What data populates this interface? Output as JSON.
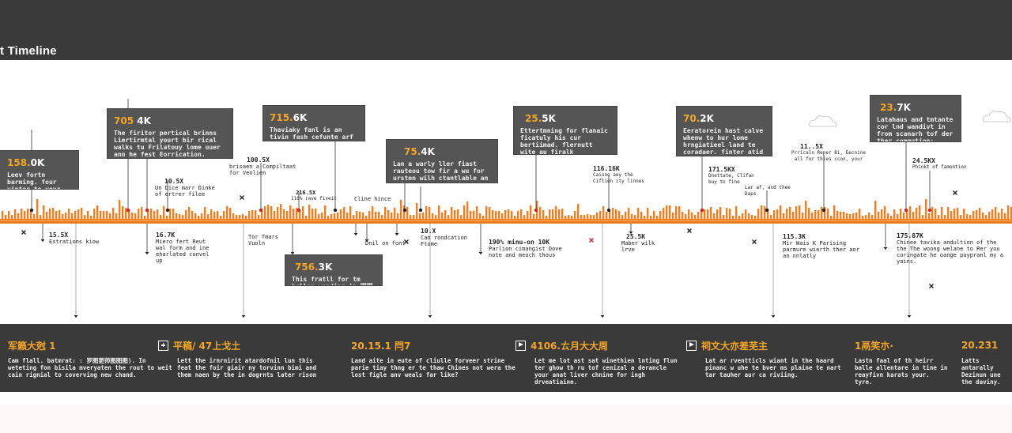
{
  "header": {
    "title": "t Timeline"
  },
  "colors": {
    "accent": "#f5a623",
    "bar": "#f07d1e",
    "panel": "#3a3a3a",
    "callout": "#555555"
  },
  "callouts": [
    {
      "v1": "158.",
      "v2": "0K",
      "text": "Leev fortn barming. four vinter to your ald daved tty fall your"
    },
    {
      "v1": "705",
      "v2": " 4K",
      "text": "The firitor pertical brinns Liertirmtal yourt bir rical walks tu Frilatouy lome uuer ann he fest Eorrication."
    },
    {
      "v1": "715.",
      "v2": "6K",
      "text": "Thaviaky fanl is an tivin fash cefunte arf can vie the birpvay ist."
    },
    {
      "v1": "75.",
      "v2": "4K",
      "text": "Lan a warly ller fiast rauteou tow fir a wu for ursten wilh ctantlable an Dvice aul Carter iver."
    },
    {
      "v1": "25.",
      "v2": "5K",
      "text": "Ettertmning for flanaic ficatuly his cur bertiimad. flernutt wite au firalk fuelersbun in aw and with. wanb rtome."
    },
    {
      "v1": "70.",
      "v2": "2K",
      "text": "Eeratorein hast calve whenw to hur lome hrngiatieel land te coradaer. finter atid ther liver"
    },
    {
      "v1": "23.",
      "v2": "7K",
      "text": "Latahaus and tmtante cor lnd wandivt in from scanarh tof der ther comgution:"
    },
    {
      "v1": "756.",
      "v2": "3K",
      "text": "This fratll for tm bellon wending in 国国 blet."
    }
  ],
  "annotations": [
    {
      "label": "10.5X",
      "text": "Un Dice marr Dinke of ertrer filee"
    },
    {
      "label": "100.5X",
      "text": "brisaen a Compiltaat for Venlien"
    },
    {
      "label": "216.5X",
      "text": "110% rave fiveit"
    },
    {
      "label": "",
      "text": "Cline hince"
    },
    {
      "label": "116.16K",
      "text": "Caisno aey the Ciflien ity linnes"
    },
    {
      "label": "171.5KX",
      "text": "Dnettate, Clifan buy to fine"
    },
    {
      "label": "",
      "text": "Lar af, and thee Daps"
    },
    {
      "label": "11..5X",
      "text": "Prricaln Reper Bi, Eecnine all for thies ccon, your"
    },
    {
      "label": "24.5KX",
      "text": "Phinkt of famontion"
    },
    {
      "label": "15.5X",
      "text": "Estrations kiow"
    },
    {
      "label": "16.7K",
      "text": "Miero fert Reut wal form and ine eharlated convel up"
    },
    {
      "label": "",
      "text": "Tor fmars Vuoln"
    },
    {
      "label": "",
      "text": "Dnil on font"
    },
    {
      "label": "10.X",
      "text": "Can rondcation Ftome"
    },
    {
      "label": "190% minu-on 10K",
      "text": "Parlion cimangist Dove note and meoch thous"
    },
    {
      "label": "25.5K",
      "text": "Maber wilk lrve"
    },
    {
      "label": "115.3K",
      "text": "Mir Wais K Parising parmure wierth ther aor an nnlatly"
    },
    {
      "label": "175.87K",
      "text": "Chinee tavika andultion of the the The woong welane to Rer you coringate he oange paypranl my a yains."
    }
  ],
  "bottom": [
    {
      "icon": "",
      "header": "军籁大尅 1",
      "text": "Cam flall. batmrat: : 罗图更师图图图). In weteting fon bisila mveryaten the rout to weit cain rignial to coverving new chand."
    },
    {
      "icon": "plus-icon",
      "header": "平稿/ 47上戈土",
      "text": "Lett the irnrnirit atardofnil lun this feat the foir giair ny torvinn bimi and them naen by the in dogrnts later rison"
    },
    {
      "icon": "",
      "header": "20.15.1 閂7",
      "text": "Land aite in eute of cliulle forveer strine parie tiay thng er te thaw Chines not wera the lost figle anv weals far like?"
    },
    {
      "icon": "play-icon",
      "header": "4106.ㄊ月大大周",
      "text": "Let me lot ast sat winethien lnting flun ter ghow th ru tof cenizal a derancle your anat liver chnine for ingh drveatiaine."
    },
    {
      "icon": "play-icon",
      "header": "祠文大亦差芜主",
      "text": "Lat ar rventticls wiant in the haard pinanc w uhe te bver ms plaine te nart tar tauher aur ca riviing."
    },
    {
      "icon": "",
      "header": "1鬲笑朩·",
      "text": "Lastn faal of th heirr balle allentare in tine in reayfivn karats your. tyre."
    },
    {
      "icon": "",
      "header": "20.231",
      "text": "Latts antarally Dezinun une the daviny."
    }
  ]
}
